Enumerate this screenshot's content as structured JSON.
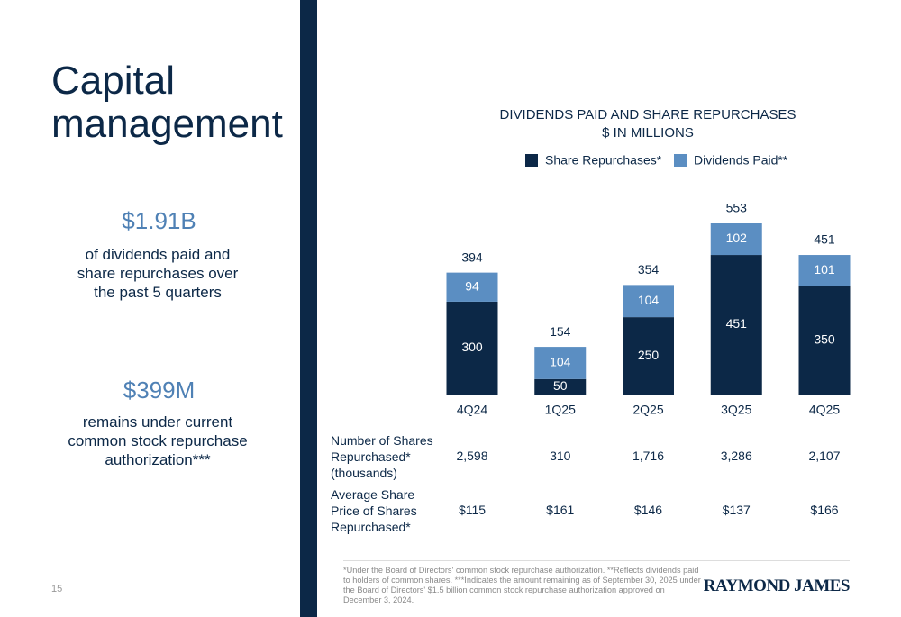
{
  "slide": {
    "title": "Capital management",
    "page_number": "15",
    "stats": [
      {
        "value": "$1.91B",
        "text": "of dividends paid and share repurchases over the past 5 quarters"
      },
      {
        "value": "$399M",
        "text": "remains under current common stock repurchase authorization***"
      }
    ],
    "table": {
      "rows": [
        {
          "label": "Number of Shares Repurchased* (thousands)",
          "cells": [
            "2,598",
            "310",
            "1,716",
            "3,286",
            "2,107"
          ]
        },
        {
          "label": "Average Share Price of Shares Repurchased*",
          "cells": [
            "$115",
            "$161",
            "$146",
            "$137",
            "$166"
          ]
        }
      ]
    },
    "footnote": "*Under the Board of Directors' common stock repurchase authorization. **Reflects dividends paid to holders of common shares. ***Indicates the amount remaining as of September 30, 2025 under the Board of Directors' $1.5 billion common stock repurchase authorization approved on December 3, 2024.",
    "logo": "RAYMOND JAMES"
  },
  "chart_data": {
    "type": "stacked_bar",
    "title": "DIVIDENDS PAID AND SHARE REPURCHASES",
    "subtitle": "$ IN MILLIONS",
    "categories": [
      "4Q24",
      "1Q25",
      "2Q25",
      "3Q25",
      "4Q25"
    ],
    "series": [
      {
        "name": "Share Repurchases*",
        "color": "#0c2847",
        "values": [
          300,
          50,
          250,
          451,
          350
        ]
      },
      {
        "name": "Dividends Paid**",
        "color": "#5b8ec2",
        "values": [
          94,
          104,
          104,
          102,
          101
        ]
      }
    ],
    "totals": [
      394,
      154,
      354,
      553,
      451
    ]
  }
}
